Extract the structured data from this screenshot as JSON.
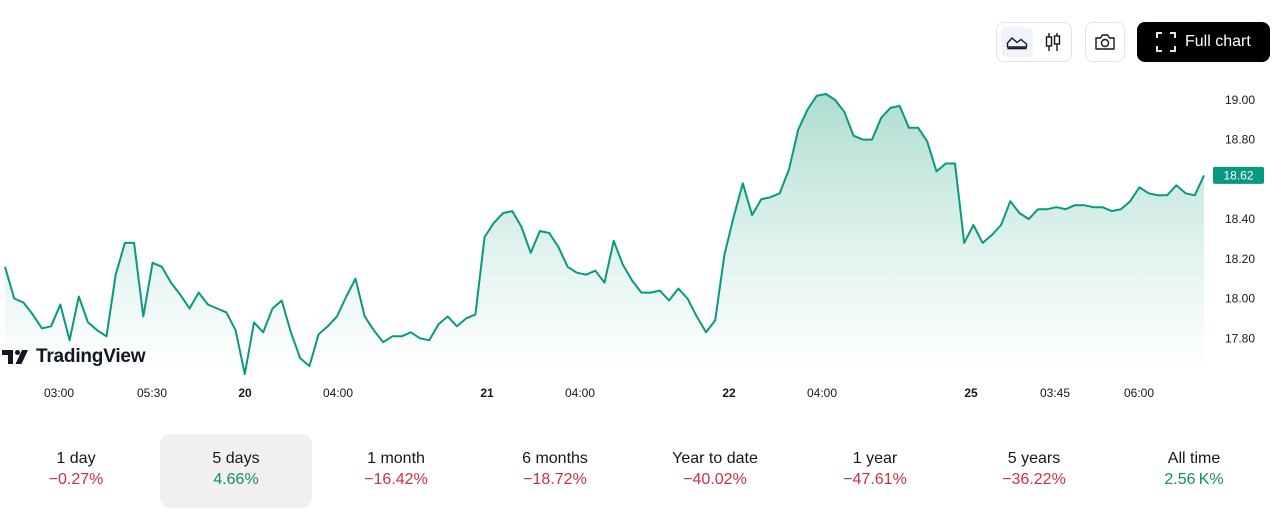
{
  "toolbar": {
    "chart_styles": [
      {
        "icon": "area-chart-icon",
        "active": true
      },
      {
        "icon": "candlestick-icon",
        "active": false
      }
    ],
    "snapshot_icon": "camera-icon",
    "full_chart_label": "Full chart",
    "full_chart_icon": "fullscreen-icon"
  },
  "logo": {
    "text": "TradingView",
    "icon": "tradingview-logo-icon"
  },
  "colors": {
    "line": "#089981",
    "area_top": "#9fd7c8",
    "area_bottom": "#ffffff",
    "price_tag_bg": "#089981",
    "negative": "#d0303e",
    "positive": "#128c6d"
  },
  "chart_data": {
    "type": "area",
    "ylim": [
      17.62,
      19.06
    ],
    "y_ticks": [
      "19.00",
      "18.80",
      "18.60",
      "18.40",
      "18.20",
      "18.00",
      "17.80"
    ],
    "last_price_label": "18.62",
    "x_ticks": [
      {
        "label": "03:00",
        "bold": false
      },
      {
        "label": "05:30",
        "bold": false
      },
      {
        "label": "20",
        "bold": true
      },
      {
        "label": "04:00",
        "bold": false
      },
      {
        "label": "21",
        "bold": true
      },
      {
        "label": "04:00",
        "bold": false
      },
      {
        "label": "22",
        "bold": true
      },
      {
        "label": "04:00",
        "bold": false
      },
      {
        "label": "25",
        "bold": true
      },
      {
        "label": "03:45",
        "bold": false
      },
      {
        "label": "06:00",
        "bold": false
      }
    ],
    "values": [
      18.16,
      18.0,
      17.98,
      17.92,
      17.85,
      17.86,
      17.97,
      17.79,
      18.01,
      17.88,
      17.84,
      17.81,
      18.12,
      18.28,
      18.28,
      17.91,
      18.18,
      18.16,
      18.08,
      18.02,
      17.95,
      18.03,
      17.97,
      17.95,
      17.93,
      17.84,
      17.62,
      17.88,
      17.83,
      17.95,
      17.99,
      17.83,
      17.7,
      17.66,
      17.82,
      17.86,
      17.91,
      18.01,
      18.1,
      17.91,
      17.84,
      17.78,
      17.81,
      17.81,
      17.83,
      17.8,
      17.79,
      17.87,
      17.91,
      17.86,
      17.9,
      17.92,
      18.31,
      18.38,
      18.43,
      18.44,
      18.36,
      18.23,
      18.34,
      18.33,
      18.26,
      18.16,
      18.13,
      18.12,
      18.14,
      18.08,
      18.29,
      18.17,
      18.09,
      18.03,
      18.03,
      18.04,
      17.99,
      18.05,
      18.0,
      17.91,
      17.83,
      17.89,
      18.22,
      18.41,
      18.58,
      18.42,
      18.5,
      18.51,
      18.53,
      18.65,
      18.85,
      18.95,
      19.02,
      19.03,
      19.0,
      18.94,
      18.82,
      18.8,
      18.8,
      18.91,
      18.96,
      18.97,
      18.86,
      18.86,
      18.79,
      18.64,
      18.68,
      18.68,
      18.28,
      18.37,
      18.28,
      18.32,
      18.37,
      18.49,
      18.43,
      18.4,
      18.45,
      18.45,
      18.46,
      18.45,
      18.47,
      18.47,
      18.46,
      18.46,
      18.44,
      18.45,
      18.49,
      18.56,
      18.53,
      18.52,
      18.52,
      18.57,
      18.53,
      18.52,
      18.62
    ]
  },
  "periods": [
    {
      "label": "1 day",
      "change": "−0.27%",
      "positive": false,
      "active": false
    },
    {
      "label": "5 days",
      "change": "4.66%",
      "positive": true,
      "active": true
    },
    {
      "label": "1 month",
      "change": "−16.42%",
      "positive": false,
      "active": false
    },
    {
      "label": "6 months",
      "change": "−18.72%",
      "positive": false,
      "active": false
    },
    {
      "label": "Year to date",
      "change": "−40.02%",
      "positive": false,
      "active": false
    },
    {
      "label": "1 year",
      "change": "−47.61%",
      "positive": false,
      "active": false
    },
    {
      "label": "5 years",
      "change": "−36.22%",
      "positive": false,
      "active": false
    },
    {
      "label": "All time",
      "change": "2.56 K%",
      "positive": true,
      "active": false
    }
  ]
}
